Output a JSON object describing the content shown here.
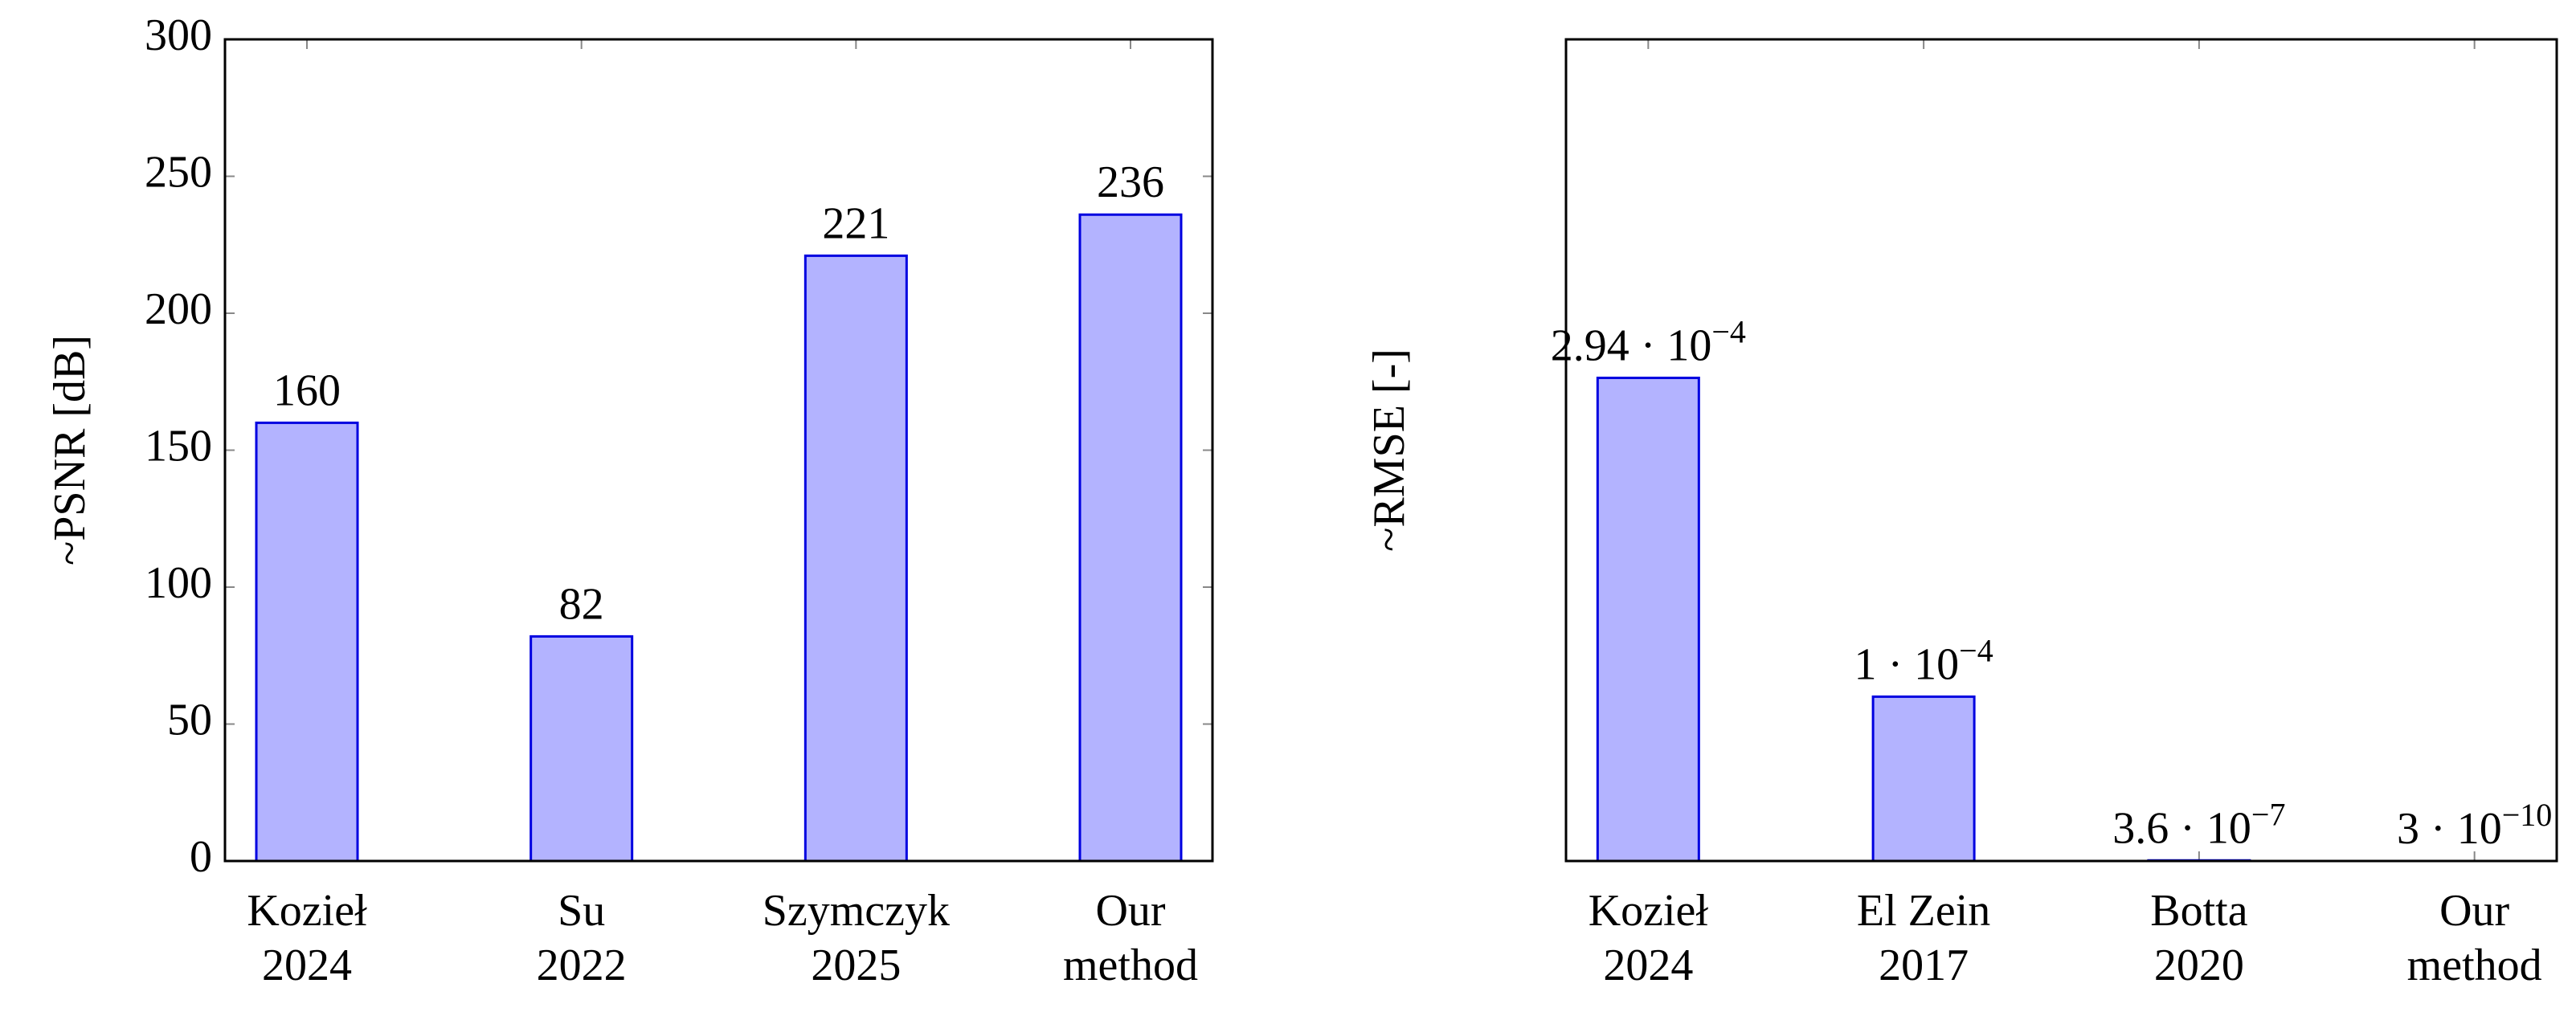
{
  "chart_data": [
    {
      "type": "bar",
      "y_label": "~PSNR [dB]",
      "categories": [
        [
          "Kozieł",
          "2024"
        ],
        [
          "Su",
          "2022"
        ],
        [
          "Szymczyk",
          "2025"
        ],
        [
          "Our",
          "method"
        ]
      ],
      "values": [
        160,
        82,
        221,
        236
      ],
      "color": "#b3b3ff",
      "edge_color": "#0000e0",
      "ylim": [
        0,
        300
      ],
      "yticks": [
        0,
        50,
        100,
        150,
        200,
        250,
        300
      ]
    },
    {
      "type": "bar",
      "y_label": "~RMSE [-]",
      "categories": [
        [
          "Kozieł",
          "2024"
        ],
        [
          "El Zein",
          "2017"
        ],
        [
          "Botta",
          "2020"
        ],
        [
          "Our",
          "method"
        ]
      ],
      "values": [
        0.000294,
        0.0001,
        3.6e-07,
        3e-10
      ],
      "value_labels": [
        {
          "base": "2.94 · 10",
          "exponent": "−4"
        },
        {
          "base": "1 · 10",
          "exponent": "−4"
        },
        {
          "base": "3.6 · 10",
          "exponent": "−7"
        },
        {
          "base": "3 · 10",
          "exponent": "−10"
        }
      ],
      "color": "#b3b3ff",
      "edge_color": "#0000e0",
      "ylim": [
        0,
        0.0005
      ]
    }
  ]
}
